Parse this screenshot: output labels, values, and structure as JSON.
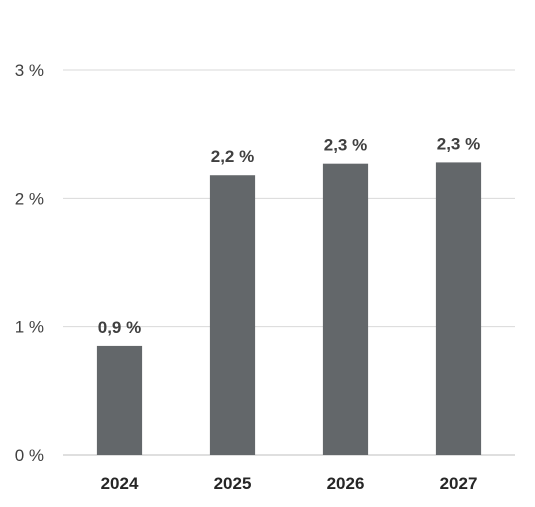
{
  "chart_data": {
    "type": "bar",
    "title": "",
    "xlabel": "",
    "ylabel": "",
    "categories": [
      "2024",
      "2025",
      "2026",
      "2027"
    ],
    "values": [
      0.85,
      2.18,
      2.27,
      2.28
    ],
    "data_labels": [
      "0,9 %",
      "2,2 %",
      "2,3 %",
      "2,3 %"
    ],
    "ylim": [
      0,
      3
    ],
    "y_ticks": [
      0,
      1,
      2,
      3
    ],
    "y_tick_labels": [
      "0 %",
      "1 %",
      "2 %",
      "3 %"
    ],
    "grid": true,
    "legend": "none",
    "bar_color": "#63676a"
  }
}
